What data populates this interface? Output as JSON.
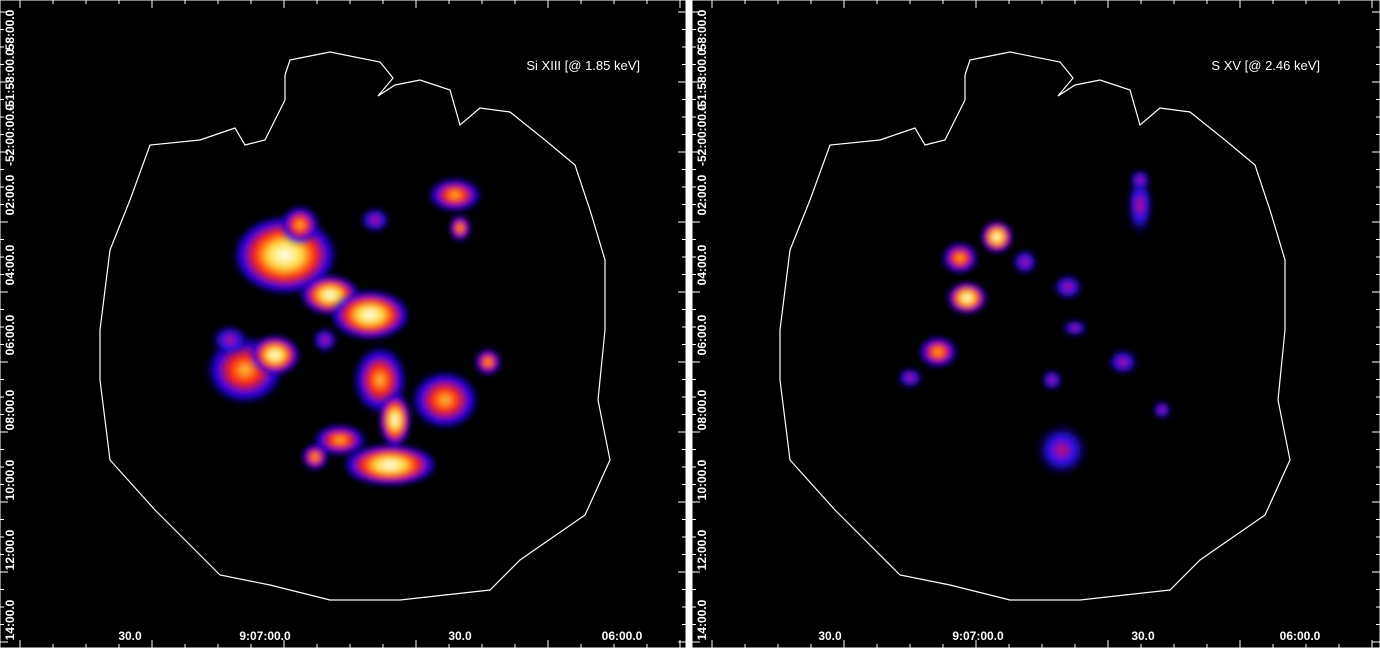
{
  "panels": [
    {
      "annotation": "Si XIII [@ 1.85 keV]",
      "yticks": [
        "58:00.0",
        "-51:58:00.0",
        "-52:00:00.0",
        "02:00.0",
        "04:00.0",
        "06:00.0",
        "08:00.0",
        "10:00.0",
        "12:00.0",
        "14:00.0"
      ],
      "xticks": [
        "30.0",
        "9:07:00.0",
        "30.0",
        "06:00.0"
      ]
    },
    {
      "annotation": "S XV [@ 2.46 keV]",
      "yticks": [
        "58:00.0",
        "-51:58:00.0",
        "-52:00:00.0",
        "02:00.0",
        "04:00.0",
        "06:00.0",
        "08:00.0",
        "10:00.0",
        "12:00.0",
        "14:00.0"
      ],
      "xticks": [
        "30.0",
        "9:07:00.0",
        "30.0",
        "06:00.0"
      ]
    }
  ]
}
